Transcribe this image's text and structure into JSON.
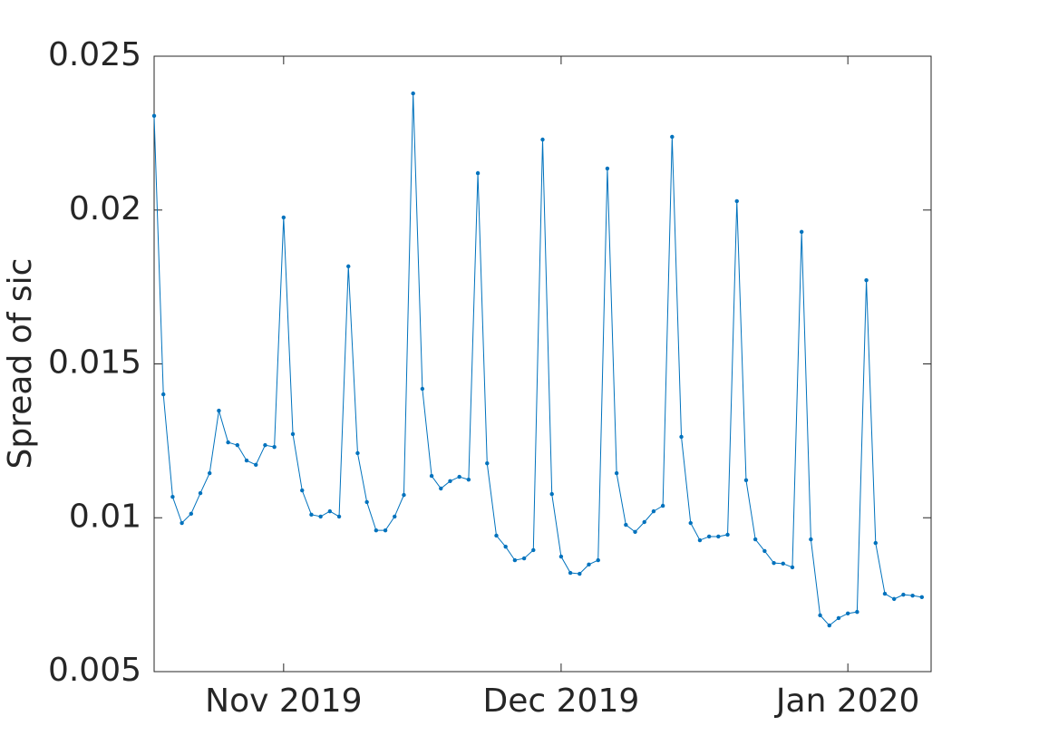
{
  "chart_data": {
    "type": "line",
    "ylabel": "Spread of sic",
    "x": [
      "2019-10-18",
      "2019-10-19",
      "2019-10-20",
      "2019-10-21",
      "2019-10-22",
      "2019-10-23",
      "2019-10-24",
      "2019-10-25",
      "2019-10-26",
      "2019-10-27",
      "2019-10-28",
      "2019-10-29",
      "2019-10-30",
      "2019-10-31",
      "2019-11-01",
      "2019-11-02",
      "2019-11-03",
      "2019-11-04",
      "2019-11-05",
      "2019-11-06",
      "2019-11-07",
      "2019-11-08",
      "2019-11-09",
      "2019-11-10",
      "2019-11-11",
      "2019-11-12",
      "2019-11-13",
      "2019-11-14",
      "2019-11-15",
      "2019-11-16",
      "2019-11-17",
      "2019-11-18",
      "2019-11-19",
      "2019-11-20",
      "2019-11-21",
      "2019-11-22",
      "2019-11-23",
      "2019-11-24",
      "2019-11-25",
      "2019-11-26",
      "2019-11-27",
      "2019-11-28",
      "2019-11-29",
      "2019-11-30",
      "2019-12-01",
      "2019-12-02",
      "2019-12-03",
      "2019-12-04",
      "2019-12-05",
      "2019-12-06",
      "2019-12-07",
      "2019-12-08",
      "2019-12-09",
      "2019-12-10",
      "2019-12-11",
      "2019-12-12",
      "2019-12-13",
      "2019-12-14",
      "2019-12-15",
      "2019-12-16",
      "2019-12-17",
      "2019-12-18",
      "2019-12-19",
      "2019-12-20",
      "2019-12-21",
      "2019-12-22",
      "2019-12-23",
      "2019-12-24",
      "2019-12-25",
      "2019-12-26",
      "2019-12-27",
      "2019-12-28",
      "2019-12-29",
      "2019-12-30",
      "2019-12-31",
      "2020-01-01",
      "2020-01-02",
      "2020-01-03",
      "2020-01-04",
      "2020-01-05",
      "2020-01-06",
      "2020-01-07",
      "2020-01-08",
      "2020-01-09"
    ],
    "series": [
      {
        "color": "#0072bd",
        "values": [
          0.02306,
          0.01401,
          0.01068,
          0.00983,
          0.01013,
          0.0108,
          0.01145,
          0.01348,
          0.01245,
          0.01236,
          0.01186,
          0.01172,
          0.01236,
          0.0123,
          0.01976,
          0.01272,
          0.01089,
          0.0101,
          0.01004,
          0.01021,
          0.01004,
          0.01817,
          0.0121,
          0.01051,
          0.00959,
          0.00959,
          0.01004,
          0.01074,
          0.02379,
          0.01419,
          0.01136,
          0.01095,
          0.01119,
          0.01133,
          0.01124,
          0.0212,
          0.01177,
          0.00942,
          0.00906,
          0.00862,
          0.00868,
          0.00895,
          0.02229,
          0.01077,
          0.00874,
          0.00821,
          0.00818,
          0.00848,
          0.00862,
          0.02135,
          0.01145,
          0.00977,
          0.00954,
          0.00986,
          0.01021,
          0.01039,
          0.02238,
          0.01263,
          0.00983,
          0.00927,
          0.00939,
          0.00939,
          0.00945,
          0.02029,
          0.01122,
          0.0093,
          0.00892,
          0.00853,
          0.00851,
          0.00839,
          0.01929,
          0.0093,
          0.00683,
          0.0065,
          0.00674,
          0.00689,
          0.00694,
          0.01772,
          0.00918,
          0.00753,
          0.00736,
          0.0075,
          0.00747,
          0.00742
        ]
      }
    ],
    "xlim": [
      "2019-10-18",
      "2020-01-10"
    ],
    "xticks": [
      {
        "value": "2019-11-01",
        "label": "Nov 2019"
      },
      {
        "value": "2019-12-01",
        "label": "Dec 2019"
      },
      {
        "value": "2020-01-01",
        "label": "Jan 2020"
      }
    ],
    "ylim": [
      0.005,
      0.025
    ],
    "yticks": [
      0.005,
      0.01,
      0.015,
      0.02,
      0.025
    ],
    "grid": false
  }
}
